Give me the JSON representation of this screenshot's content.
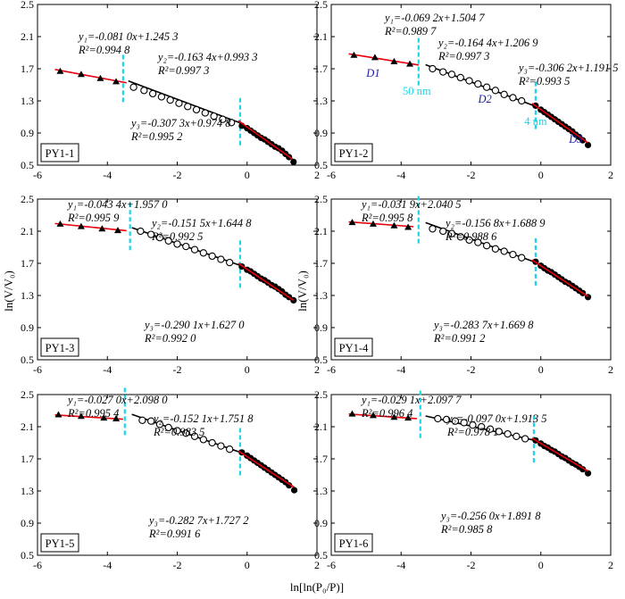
{
  "figure": {
    "xlabel": "ln[ln(P₀/P)]",
    "ylabel": "ln(V/V₀)",
    "xticks": [
      "-6",
      "-4",
      "-2",
      "0",
      "2"
    ],
    "yticks": [
      "0.5",
      "0.9",
      "1.3",
      "1.7",
      "2.1",
      "2.5"
    ]
  },
  "chart_data": [
    {
      "type": "scatter",
      "panel": "PY1-1",
      "xlim": [
        -6,
        2
      ],
      "ylim": [
        0.5,
        2.5
      ],
      "dividers_x": [
        -3.55,
        -0.2
      ],
      "fits": [
        {
          "eq": "y₁=-0.081 0x+1.245 3",
          "r2": "R²=0.994 8",
          "slope": -0.081,
          "intercept": 1.2453,
          "x": [
            -5.5,
            -3.45
          ],
          "color": "#e8000b"
        },
        {
          "eq": "y₂=-0.163 4x+0.993 3",
          "r2": "R²=0.997 3",
          "slope": -0.1634,
          "intercept": 0.9933,
          "x": [
            -3.4,
            -0.2
          ],
          "color": "#000000"
        },
        {
          "eq": "y₃=-0.307 3x+0.974 8",
          "r2": "R²=0.995 2",
          "slope": -0.3073,
          "intercept": 0.9748,
          "x": [
            -0.25,
            1.3
          ],
          "color": "#e8000b"
        }
      ],
      "tri_x": [
        -5.35,
        -4.75,
        -4.2,
        -3.75
      ],
      "tri_y": [
        1.67,
        1.63,
        1.58,
        1.54
      ],
      "circ_x": [
        -3.25,
        -2.95,
        -2.7,
        -2.45,
        -2.2,
        -1.95,
        -1.7,
        -1.45,
        -1.2,
        -0.95,
        -0.7,
        -0.45
      ],
      "circ_y": [
        1.47,
        1.43,
        1.39,
        1.35,
        1.31,
        1.27,
        1.23,
        1.19,
        1.15,
        1.11,
        1.07,
        1.03
      ],
      "dot_x": [
        -0.15,
        0.0,
        0.1,
        0.2,
        0.3,
        0.4,
        0.5,
        0.6,
        0.7,
        0.8,
        0.9,
        1.0,
        1.1,
        1.2,
        1.33
      ],
      "dot_y": [
        0.99,
        0.96,
        0.93,
        0.9,
        0.87,
        0.84,
        0.82,
        0.79,
        0.76,
        0.73,
        0.71,
        0.68,
        0.64,
        0.6,
        0.54
      ]
    },
    {
      "type": "scatter",
      "panel": "PY1-2",
      "xlim": [
        -6,
        2
      ],
      "ylim": [
        0.5,
        2.5
      ],
      "dividers_x": [
        -3.5,
        -0.15
      ],
      "fits": [
        {
          "eq": "y₁=-0.069 2x+1.504 7",
          "r2": "R²=0.989 7",
          "slope": -0.0692,
          "intercept": 1.5047,
          "x": [
            -5.5,
            -3.5
          ],
          "color": "#e8000b"
        },
        {
          "eq": "y₂=-0.164 4x+1.206 9",
          "r2": "R²=0.997 3",
          "slope": -0.1644,
          "intercept": 1.2069,
          "x": [
            -3.3,
            -0.15
          ],
          "color": "#000000"
        },
        {
          "eq": "y₃=-0.306 2x+1.191 5",
          "r2": "R²=0.993 5",
          "slope": -0.3062,
          "intercept": 1.1915,
          "x": [
            -0.25,
            1.35
          ],
          "color": "#e8000b"
        }
      ],
      "tri_x": [
        -5.35,
        -4.75,
        -4.2,
        -3.75
      ],
      "tri_y": [
        1.87,
        1.84,
        1.79,
        1.76
      ],
      "circ_x": [
        -3.1,
        -2.8,
        -2.55,
        -2.3,
        -2.05,
        -1.8,
        -1.55,
        -1.3,
        -1.05,
        -0.8,
        -0.55
      ],
      "circ_y": [
        1.7,
        1.66,
        1.63,
        1.59,
        1.55,
        1.51,
        1.47,
        1.43,
        1.38,
        1.34,
        1.3
      ],
      "dot_x": [
        -0.15,
        0.0,
        0.1,
        0.2,
        0.3,
        0.4,
        0.5,
        0.6,
        0.7,
        0.8,
        0.9,
        1.0,
        1.1,
        1.2,
        1.35
      ],
      "dot_y": [
        1.24,
        1.19,
        1.16,
        1.13,
        1.1,
        1.07,
        1.04,
        1.01,
        0.98,
        0.95,
        0.92,
        0.88,
        0.85,
        0.81,
        0.75
      ],
      "annotations": [
        {
          "text": "D1",
          "x": -4.8,
          "y": 1.6,
          "color": "#1a1ab0",
          "italic": true
        },
        {
          "text": "50 nm",
          "x": -3.55,
          "y": 1.38,
          "color": "#19d6e8",
          "italic": false
        },
        {
          "text": "D2",
          "x": -1.6,
          "y": 1.28,
          "color": "#1a1ab0",
          "italic": true
        },
        {
          "text": "4 nm",
          "x": -0.15,
          "y": 1.0,
          "color": "#19d6e8",
          "italic": false
        },
        {
          "text": "D3",
          "x": 1.0,
          "y": 0.78,
          "color": "#1a1ab0",
          "italic": true
        }
      ]
    },
    {
      "type": "scatter",
      "panel": "PY1-3",
      "xlim": [
        -6,
        2
      ],
      "ylim": [
        0.5,
        2.5
      ],
      "dividers_x": [
        -3.35,
        -0.2
      ],
      "fits": [
        {
          "eq": "y₁=-0.043 4x+1.957 0",
          "r2": "R²=0.995 9",
          "slope": -0.0434,
          "intercept": 1.957,
          "x": [
            -5.5,
            -3.45
          ],
          "color": "#e8000b"
        },
        {
          "eq": "y₂=-0.151 5x+1.644 8",
          "r2": "R²=0.992 5",
          "slope": -0.1515,
          "intercept": 1.6448,
          "x": [
            -3.3,
            -0.2
          ],
          "color": "#000000"
        },
        {
          "eq": "y₃=-0.290 1x+1.627 0",
          "r2": "R²=0.992 0",
          "slope": -0.2901,
          "intercept": 1.627,
          "x": [
            -0.25,
            1.33
          ],
          "color": "#e8000b"
        }
      ],
      "tri_x": [
        -5.35,
        -4.75,
        -4.15,
        -3.7
      ],
      "tri_y": [
        2.19,
        2.16,
        2.13,
        2.11
      ],
      "circ_x": [
        -3.05,
        -2.75,
        -2.5,
        -2.25,
        -2.0,
        -1.75,
        -1.5,
        -1.25,
        -1.0,
        -0.75,
        -0.5
      ],
      "circ_y": [
        2.1,
        2.06,
        2.02,
        1.98,
        1.94,
        1.91,
        1.87,
        1.83,
        1.79,
        1.75,
        1.71
      ],
      "dot_x": [
        -0.15,
        0.0,
        0.1,
        0.2,
        0.3,
        0.4,
        0.5,
        0.6,
        0.7,
        0.8,
        0.9,
        1.0,
        1.1,
        1.2,
        1.33
      ],
      "dot_y": [
        1.66,
        1.62,
        1.6,
        1.57,
        1.54,
        1.51,
        1.49,
        1.46,
        1.43,
        1.41,
        1.38,
        1.35,
        1.31,
        1.28,
        1.24
      ]
    },
    {
      "type": "scatter",
      "panel": "PY1-4",
      "xlim": [
        -6,
        2
      ],
      "ylim": [
        0.5,
        2.5
      ],
      "dividers_x": [
        -3.5,
        -0.15
      ],
      "fits": [
        {
          "eq": "y₁=-0.031 9x+2.040 5",
          "r2": "R²=0.995 8",
          "slope": -0.0319,
          "intercept": 2.0405,
          "x": [
            -5.5,
            -3.65
          ],
          "color": "#e8000b"
        },
        {
          "eq": "y₂=-0.156 8x+1.688 9",
          "r2": "R²=0.988 6",
          "slope": -0.1568,
          "intercept": 1.6889,
          "x": [
            -3.3,
            -0.15
          ],
          "color": "#000000"
        },
        {
          "eq": "y₃=-0.283 7x+1.669 8",
          "r2": "R²=0.991 2",
          "slope": -0.2837,
          "intercept": 1.6698,
          "x": [
            -0.25,
            1.35
          ],
          "color": "#e8000b"
        }
      ],
      "tri_x": [
        -5.4,
        -4.8,
        -4.2,
        -3.8
      ],
      "tri_y": [
        2.21,
        2.19,
        2.17,
        2.15
      ],
      "circ_x": [
        -3.1,
        -2.8,
        -2.55,
        -2.3,
        -2.05,
        -1.8,
        -1.55,
        -1.3,
        -1.05,
        -0.8,
        -0.55
      ],
      "circ_y": [
        2.13,
        2.1,
        2.07,
        2.03,
        1.99,
        1.96,
        1.92,
        1.88,
        1.85,
        1.81,
        1.77
      ],
      "dot_x": [
        -0.15,
        0.0,
        0.1,
        0.2,
        0.3,
        0.4,
        0.5,
        0.6,
        0.7,
        0.8,
        0.9,
        1.0,
        1.1,
        1.2,
        1.35
      ],
      "dot_y": [
        1.72,
        1.67,
        1.64,
        1.61,
        1.59,
        1.56,
        1.53,
        1.5,
        1.47,
        1.45,
        1.42,
        1.39,
        1.36,
        1.33,
        1.28
      ]
    },
    {
      "type": "scatter",
      "panel": "PY1-5",
      "xlim": [
        -6,
        2
      ],
      "ylim": [
        0.5,
        2.5
      ],
      "dividers_x": [
        -3.5,
        -0.2
      ],
      "fits": [
        {
          "eq": "y₁=-0.027 0x+2.098 0",
          "r2": "R²=0.995 4",
          "slope": -0.027,
          "intercept": 2.098,
          "x": [
            -5.5,
            -3.55
          ],
          "color": "#e8000b"
        },
        {
          "eq": "y₂=-0.152 1x+1.751 8",
          "r2": "R²=0.983 5",
          "slope": -0.1521,
          "intercept": 1.7518,
          "x": [
            -3.3,
            -0.2
          ],
          "color": "#000000"
        },
        {
          "eq": "y₃=-0.282 7x+1.727 2",
          "r2": "R²=0.991 6",
          "slope": -0.2827,
          "intercept": 1.7272,
          "x": [
            -0.25,
            1.35
          ],
          "color": "#e8000b"
        }
      ],
      "tri_x": [
        -5.4,
        -4.75,
        -4.1,
        -3.75
      ],
      "tri_y": [
        2.25,
        2.23,
        2.21,
        2.2
      ],
      "circ_x": [
        -3.0,
        -2.75,
        -2.5,
        -2.25,
        -2.0,
        -1.75,
        -1.5,
        -1.25,
        -1.0,
        -0.75,
        -0.5
      ],
      "circ_y": [
        2.18,
        2.17,
        2.13,
        2.09,
        2.05,
        2.02,
        1.98,
        1.94,
        1.9,
        1.86,
        1.82
      ],
      "dot_x": [
        -0.15,
        0.0,
        0.1,
        0.2,
        0.3,
        0.4,
        0.5,
        0.6,
        0.7,
        0.8,
        0.9,
        1.0,
        1.1,
        1.2,
        1.35
      ],
      "dot_y": [
        1.78,
        1.74,
        1.71,
        1.68,
        1.65,
        1.62,
        1.59,
        1.56,
        1.53,
        1.5,
        1.47,
        1.44,
        1.41,
        1.37,
        1.31
      ]
    },
    {
      "type": "scatter",
      "panel": "PY1-6",
      "xlim": [
        -6,
        2
      ],
      "ylim": [
        0.5,
        2.5
      ],
      "dividers_x": [
        -3.45,
        -0.2
      ],
      "fits": [
        {
          "eq": "y₁=-0.029 1x+2.097 7",
          "r2": "R²=0.996 4",
          "slope": -0.0291,
          "intercept": 2.0977,
          "x": [
            -5.5,
            -3.55
          ],
          "color": "#e8000b"
        },
        {
          "eq": "y₂=-0.097 0x+1.913 5",
          "r2": "R²=0.978 1",
          "slope": -0.097,
          "intercept": 1.9135,
          "x": [
            -3.3,
            -0.2
          ],
          "color": "#000000"
        },
        {
          "eq": "y₃=-0.256 0x+1.891 8",
          "r2": "R²=0.985 8",
          "slope": -0.256,
          "intercept": 1.8918,
          "x": [
            -0.25,
            1.35
          ],
          "color": "#e8000b"
        }
      ],
      "tri_x": [
        -5.4,
        -4.8,
        -4.2,
        -3.8
      ],
      "tri_y": [
        2.26,
        2.24,
        2.22,
        2.21
      ],
      "circ_x": [
        -2.95,
        -2.7,
        -2.45,
        -2.2,
        -1.95,
        -1.7,
        -1.45,
        -1.2,
        -0.95,
        -0.7,
        -0.45
      ],
      "circ_y": [
        2.2,
        2.19,
        2.17,
        2.15,
        2.12,
        2.1,
        2.07,
        2.04,
        2.01,
        1.98,
        1.95
      ],
      "dot_x": [
        -0.15,
        0.0,
        0.1,
        0.2,
        0.3,
        0.4,
        0.5,
        0.6,
        0.7,
        0.8,
        0.9,
        1.0,
        1.1,
        1.2,
        1.35
      ],
      "dot_y": [
        1.93,
        1.89,
        1.86,
        1.84,
        1.81,
        1.79,
        1.76,
        1.73,
        1.71,
        1.68,
        1.65,
        1.63,
        1.6,
        1.57,
        1.52
      ]
    }
  ]
}
